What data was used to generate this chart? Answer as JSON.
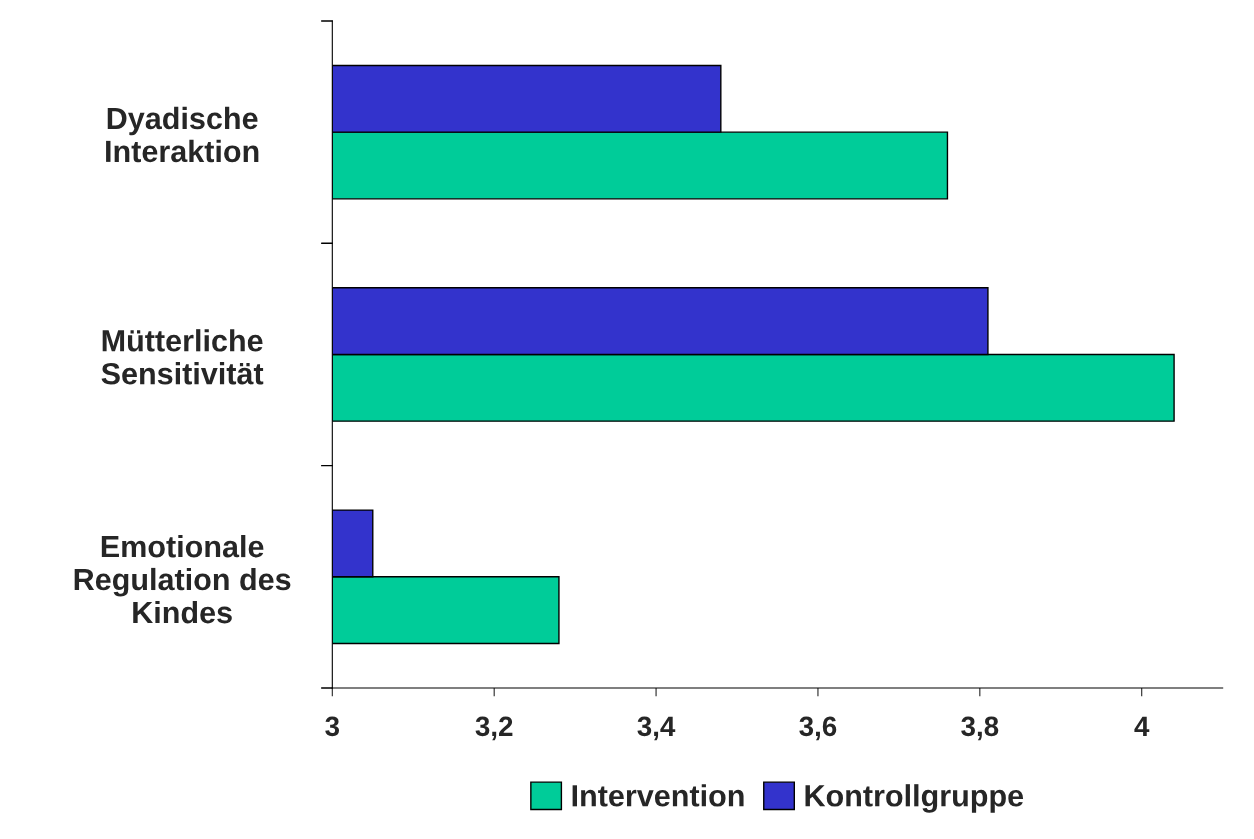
{
  "chart_data": {
    "type": "bar",
    "orientation": "horizontal",
    "categories": [
      "Dyadische\nInteraktion",
      "Mütterliche\nSensitivität",
      "Emotionale\nRegulation des\nKindes"
    ],
    "series": [
      {
        "name": "Intervention",
        "color": "#00cc99",
        "values": [
          3.76,
          4.04,
          3.28
        ]
      },
      {
        "name": "Kontrollgruppe",
        "color": "#3333cc",
        "values": [
          3.48,
          3.81,
          3.05
        ]
      }
    ],
    "xlim": [
      3,
      4.1
    ],
    "xticks": [
      {
        "value": 3,
        "label": "3"
      },
      {
        "value": 3.2,
        "label": "3,2"
      },
      {
        "value": 3.4,
        "label": "3,4"
      },
      {
        "value": 3.6,
        "label": "3,6"
      },
      {
        "value": 3.8,
        "label": "3,8"
      },
      {
        "value": 4,
        "label": "4"
      }
    ],
    "grid": false,
    "legend": "bottom"
  }
}
